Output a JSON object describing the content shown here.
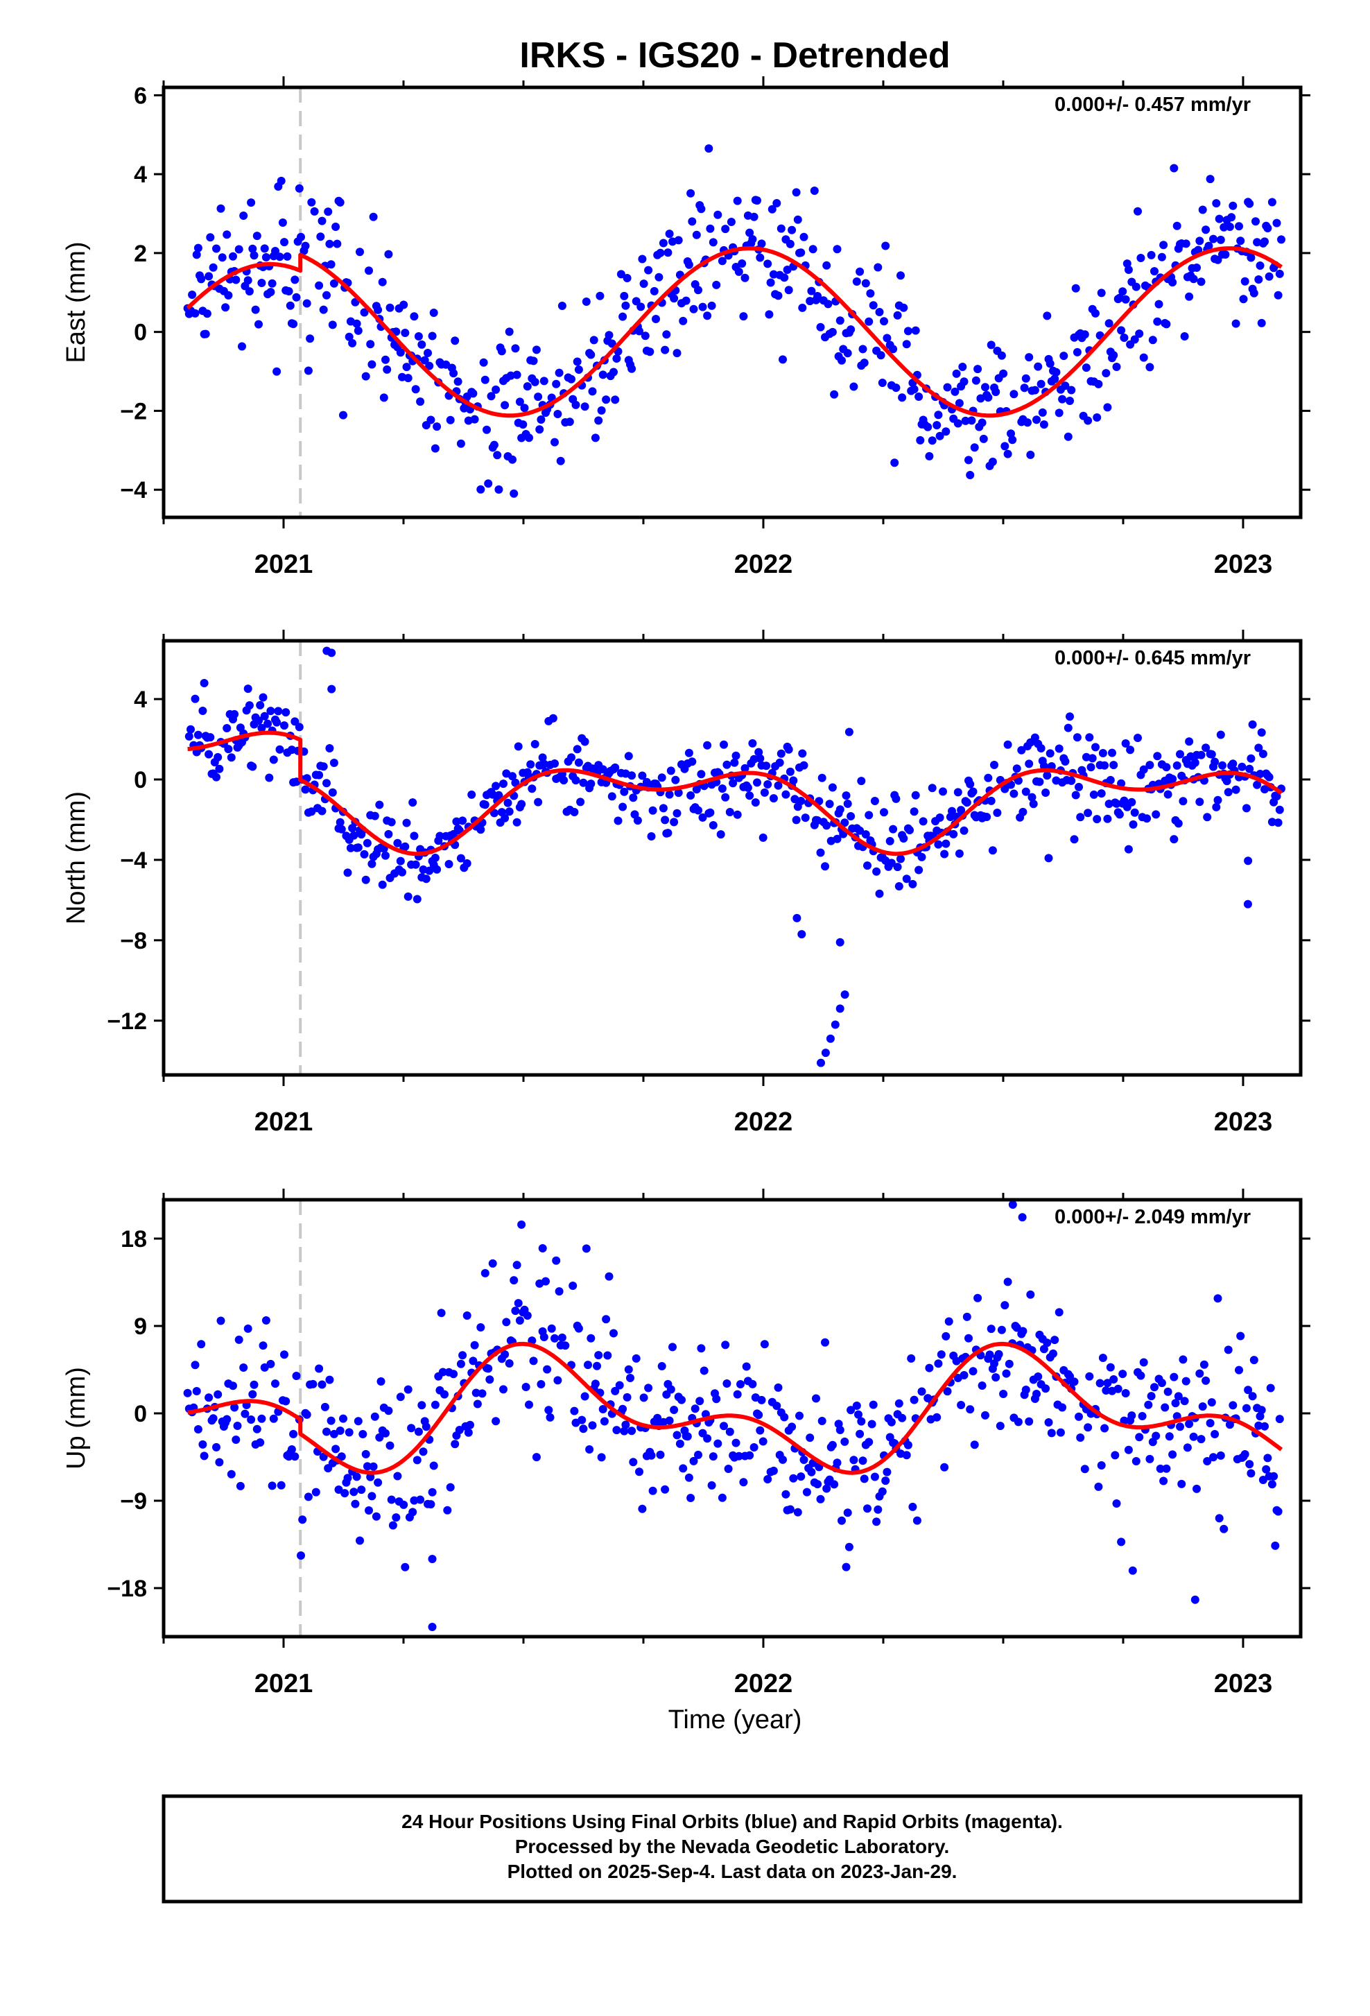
{
  "title": "IRKS - IGS20 - Detrended",
  "x_axis_label": "Time (year)",
  "footer": {
    "line1": "24 Hour Positions Using Final Orbits (blue) and Rapid Orbits (magenta).",
    "line2": "Processed by the Nevada Geodetic Laboratory.",
    "line3": "Plotted on 2025-Sep-4. Last data on 2023-Jan-29."
  },
  "colors": {
    "final_orbits": "#0000ff",
    "model": "#ff0000",
    "equipment_change": "#c8c8c8",
    "frame": "#000000"
  },
  "chart_data": [
    {
      "type": "scatter",
      "ylabel": "East (mm)",
      "rate_label": "0.000+/- 0.457 mm/yr",
      "xlim": [
        2020.75,
        2023.12
      ],
      "ylim": [
        -4.7,
        6.2
      ],
      "yticks": [
        -4,
        -2,
        0,
        2,
        4,
        6
      ],
      "x_ticks": [
        2021,
        2022,
        2023
      ],
      "x_tick_labels": [
        "2021",
        "2022",
        "2023"
      ],
      "equipment_change_x": 2021.035,
      "model": {
        "amplitude": 2.12,
        "phase": 1.75,
        "semi_amplitude": 0,
        "semi_phase": 0,
        "offset_before_break": -0.4,
        "offset_after_break": 0,
        "noise": 0.95,
        "trend": 0
      },
      "series": [
        {
          "name": "Final Orbits (blue)"
        }
      ]
    },
    {
      "type": "scatter",
      "ylabel": "North (mm)",
      "rate_label": "0.000+/- 0.645 mm/yr",
      "xlim": [
        2020.75,
        2023.12
      ],
      "ylim": [
        -14.7,
        6.9
      ],
      "yticks": [
        -12,
        -8,
        -4,
        0,
        4
      ],
      "x_ticks": [
        2021,
        2022,
        2023
      ],
      "x_tick_labels": [
        "2021",
        "2022",
        "2023"
      ],
      "equipment_change_x": 2021.035,
      "model": {
        "amplitude": 1.6,
        "phase": 3.0,
        "semi_amplitude": 1.1,
        "semi_phase": 1.2,
        "offset_before_break": 1.0,
        "offset_after_break": -1.0,
        "noise": 1.1,
        "trend": 0
      },
      "outliers": [
        {
          "x": 2022.12,
          "y": -14.1
        },
        {
          "x": 2022.13,
          "y": -13.6
        },
        {
          "x": 2022.14,
          "y": -12.9
        },
        {
          "x": 2022.15,
          "y": -12.2
        },
        {
          "x": 2022.16,
          "y": -11.4
        },
        {
          "x": 2022.17,
          "y": -10.7
        },
        {
          "x": 2022.16,
          "y": -8.1
        },
        {
          "x": 2022.07,
          "y": -6.9
        },
        {
          "x": 2022.08,
          "y": -7.7
        },
        {
          "x": 2021.09,
          "y": 6.4
        },
        {
          "x": 2021.1,
          "y": 6.3
        },
        {
          "x": 2021.1,
          "y": 4.5
        },
        {
          "x": 2023.01,
          "y": -6.2
        }
      ],
      "series": [
        {
          "name": "Final Orbits (blue)"
        }
      ]
    },
    {
      "type": "scatter",
      "ylabel": "Up (mm)",
      "rate_label": "0.000+/- 2.049 mm/yr",
      "xlim": [
        2020.75,
        2023.12
      ],
      "ylim": [
        -23,
        22
      ],
      "yticks": [
        -18,
        -9,
        0,
        9,
        18
      ],
      "x_ticks": [
        2021,
        2022,
        2023
      ],
      "x_tick_labels": [
        "2021",
        "2022",
        "2023"
      ],
      "equipment_change_x": 2021.035,
      "model": {
        "amplitude": 4.5,
        "phase": 4.3,
        "semi_amplitude": 3.2,
        "semi_phase": 1.9,
        "offset_before_break": 1.5,
        "offset_after_break": 0,
        "noise": 4.6,
        "trend": 0
      },
      "outliers": [
        {
          "x": 2021.31,
          "y": -22.0
        },
        {
          "x": 2021.31,
          "y": -15.0
        },
        {
          "x": 2021.54,
          "y": 17.0
        },
        {
          "x": 2022.52,
          "y": 21.5
        },
        {
          "x": 2022.54,
          "y": 20.2
        },
        {
          "x": 2022.9,
          "y": -19.2
        },
        {
          "x": 2022.77,
          "y": -16.2
        }
      ],
      "series": [
        {
          "name": "Final Orbits (blue)"
        }
      ]
    }
  ]
}
